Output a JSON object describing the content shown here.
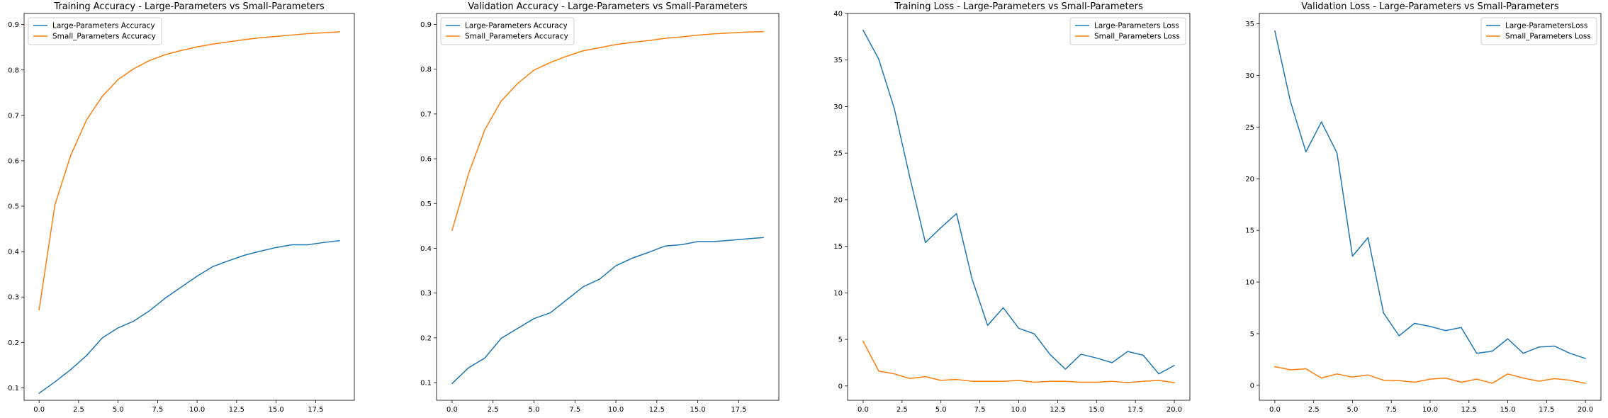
{
  "chart_data": [
    {
      "type": "line",
      "title": "Training Accuracy - Large-Parameters vs Small-Parameters",
      "xlim": [
        -0.95,
        19.95
      ],
      "ylim": [
        0.0725,
        0.9245
      ],
      "xticks": [
        0.0,
        2.5,
        5.0,
        7.5,
        10.0,
        12.5,
        15.0,
        17.5
      ],
      "xtick_labels": [
        "0.0",
        "2.5",
        "5.0",
        "7.5",
        "10.0",
        "12.5",
        "15.0",
        "17.5"
      ],
      "yticks": [
        0.1,
        0.2,
        0.3,
        0.4,
        0.5,
        0.6,
        0.7,
        0.8,
        0.9
      ],
      "ytick_labels": [
        "0.1",
        "0.2",
        "0.3",
        "0.4",
        "0.5",
        "0.6",
        "0.7",
        "0.8",
        "0.9"
      ],
      "legend_position": "upper-left",
      "grid": false,
      "x": [
        0,
        1,
        2,
        3,
        4,
        5,
        6,
        7,
        8,
        9,
        10,
        11,
        12,
        13,
        14,
        15,
        16,
        17,
        18,
        19
      ],
      "series": [
        {
          "name": "Large-Parameters Accuracy",
          "color": "#1f77b4",
          "values": [
            0.088,
            0.113,
            0.14,
            0.171,
            0.21,
            0.232,
            0.247,
            0.27,
            0.298,
            0.322,
            0.346,
            0.367,
            0.38,
            0.392,
            0.401,
            0.409,
            0.415,
            0.415,
            0.42,
            0.424
          ]
        },
        {
          "name": "Small_Parameters Accuracy",
          "color": "#ff7f0e",
          "values": [
            0.272,
            0.503,
            0.612,
            0.69,
            0.742,
            0.779,
            0.803,
            0.821,
            0.834,
            0.843,
            0.851,
            0.857,
            0.862,
            0.867,
            0.871,
            0.874,
            0.877,
            0.88,
            0.882,
            0.884
          ]
        }
      ]
    },
    {
      "type": "line",
      "title": "Validation Accuracy - Large-Parameters vs Small-Parameters",
      "xlim": [
        -0.95,
        19.95
      ],
      "ylim": [
        0.0605,
        0.9245
      ],
      "xticks": [
        0.0,
        2.5,
        5.0,
        7.5,
        10.0,
        12.5,
        15.0,
        17.5
      ],
      "xtick_labels": [
        "0.0",
        "2.5",
        "5.0",
        "7.5",
        "10.0",
        "12.5",
        "15.0",
        "17.5"
      ],
      "yticks": [
        0.1,
        0.2,
        0.3,
        0.4,
        0.5,
        0.6,
        0.7,
        0.8,
        0.9
      ],
      "ytick_labels": [
        "0.1",
        "0.2",
        "0.3",
        "0.4",
        "0.5",
        "0.6",
        "0.7",
        "0.8",
        "0.9"
      ],
      "legend_position": "upper-left",
      "grid": false,
      "x": [
        0,
        1,
        2,
        3,
        4,
        5,
        6,
        7,
        8,
        9,
        10,
        11,
        12,
        13,
        14,
        15,
        16,
        17,
        18,
        19
      ],
      "series": [
        {
          "name": "Large-Parameters Accuracy",
          "color": "#1f77b4",
          "values": [
            0.098,
            0.133,
            0.155,
            0.199,
            0.221,
            0.243,
            0.256,
            0.285,
            0.314,
            0.331,
            0.361,
            0.378,
            0.391,
            0.405,
            0.408,
            0.415,
            0.415,
            0.418,
            0.421,
            0.424
          ]
        },
        {
          "name": "Small_Parameters Accuracy",
          "color": "#ff7f0e",
          "values": [
            0.44,
            0.566,
            0.665,
            0.729,
            0.768,
            0.798,
            0.815,
            0.829,
            0.841,
            0.848,
            0.855,
            0.86,
            0.864,
            0.869,
            0.872,
            0.876,
            0.879,
            0.881,
            0.883,
            0.884
          ]
        }
      ]
    },
    {
      "type": "line",
      "title": "Training Loss - Large-Parameters vs Small-Parameters",
      "xlim": [
        -1.0,
        21.0
      ],
      "ylim": [
        -1.54,
        40.0
      ],
      "xticks": [
        0.0,
        2.5,
        5.0,
        7.5,
        10.0,
        12.5,
        15.0,
        17.5,
        20.0
      ],
      "xtick_labels": [
        "0.0",
        "2.5",
        "5.0",
        "7.5",
        "10.0",
        "12.5",
        "15.0",
        "17.5",
        "20.0"
      ],
      "yticks": [
        0,
        5,
        10,
        15,
        20,
        25,
        30,
        35,
        40
      ],
      "ytick_labels": [
        "0",
        "5",
        "10",
        "15",
        "20",
        "25",
        "30",
        "35",
        "40"
      ],
      "legend_position": "upper-right",
      "grid": false,
      "x": [
        0,
        1,
        2,
        3,
        4,
        5,
        6,
        7,
        8,
        9,
        10,
        11,
        12,
        13,
        14,
        15,
        16,
        17,
        18,
        19,
        20
      ],
      "series": [
        {
          "name": "Large-Parameters Loss",
          "color": "#1f77b4",
          "values": [
            38.2,
            35.1,
            29.8,
            22.4,
            15.4,
            17.0,
            18.5,
            11.5,
            6.5,
            8.4,
            6.2,
            5.6,
            3.4,
            1.8,
            3.4,
            3.0,
            2.5,
            3.7,
            3.3,
            1.3,
            2.2
          ]
        },
        {
          "name": "Small_Parameters Loss",
          "color": "#ff7f0e",
          "values": [
            4.8,
            1.6,
            1.3,
            0.8,
            1.0,
            0.6,
            0.7,
            0.5,
            0.5,
            0.5,
            0.6,
            0.4,
            0.5,
            0.5,
            0.4,
            0.4,
            0.5,
            0.35,
            0.5,
            0.6,
            0.35
          ]
        }
      ]
    },
    {
      "type": "line",
      "title": "Validation Loss - Large-Parameters vs Small-Parameters",
      "xlim": [
        -1.0,
        21.0
      ],
      "ylim": [
        -1.45,
        36.0
      ],
      "xticks": [
        0.0,
        2.5,
        5.0,
        7.5,
        10.0,
        12.5,
        15.0,
        17.5,
        20.0
      ],
      "xtick_labels": [
        "0.0",
        "2.5",
        "5.0",
        "7.5",
        "10.0",
        "12.5",
        "15.0",
        "17.5",
        "20.0"
      ],
      "yticks": [
        0,
        5,
        10,
        15,
        20,
        25,
        30,
        35
      ],
      "ytick_labels": [
        "0",
        "5",
        "10",
        "15",
        "20",
        "25",
        "30",
        "35"
      ],
      "legend_position": "upper-right",
      "grid": false,
      "x": [
        0,
        1,
        2,
        3,
        4,
        5,
        6,
        7,
        8,
        9,
        10,
        11,
        12,
        13,
        14,
        15,
        16,
        17,
        18,
        19,
        20
      ],
      "series": [
        {
          "name": "Large-ParametersLoss",
          "color": "#1f77b4",
          "values": [
            34.3,
            27.5,
            22.6,
            25.5,
            22.5,
            12.5,
            14.3,
            7.0,
            4.8,
            6.0,
            5.7,
            5.3,
            5.6,
            3.1,
            3.3,
            4.5,
            3.1,
            3.7,
            3.8,
            3.1,
            2.6
          ]
        },
        {
          "name": "Small_Parameters Loss",
          "color": "#ff7f0e",
          "values": [
            1.8,
            1.5,
            1.6,
            0.7,
            1.1,
            0.8,
            1.0,
            0.5,
            0.45,
            0.3,
            0.6,
            0.7,
            0.3,
            0.6,
            0.2,
            1.1,
            0.7,
            0.4,
            0.65,
            0.5,
            0.2
          ]
        }
      ]
    }
  ]
}
